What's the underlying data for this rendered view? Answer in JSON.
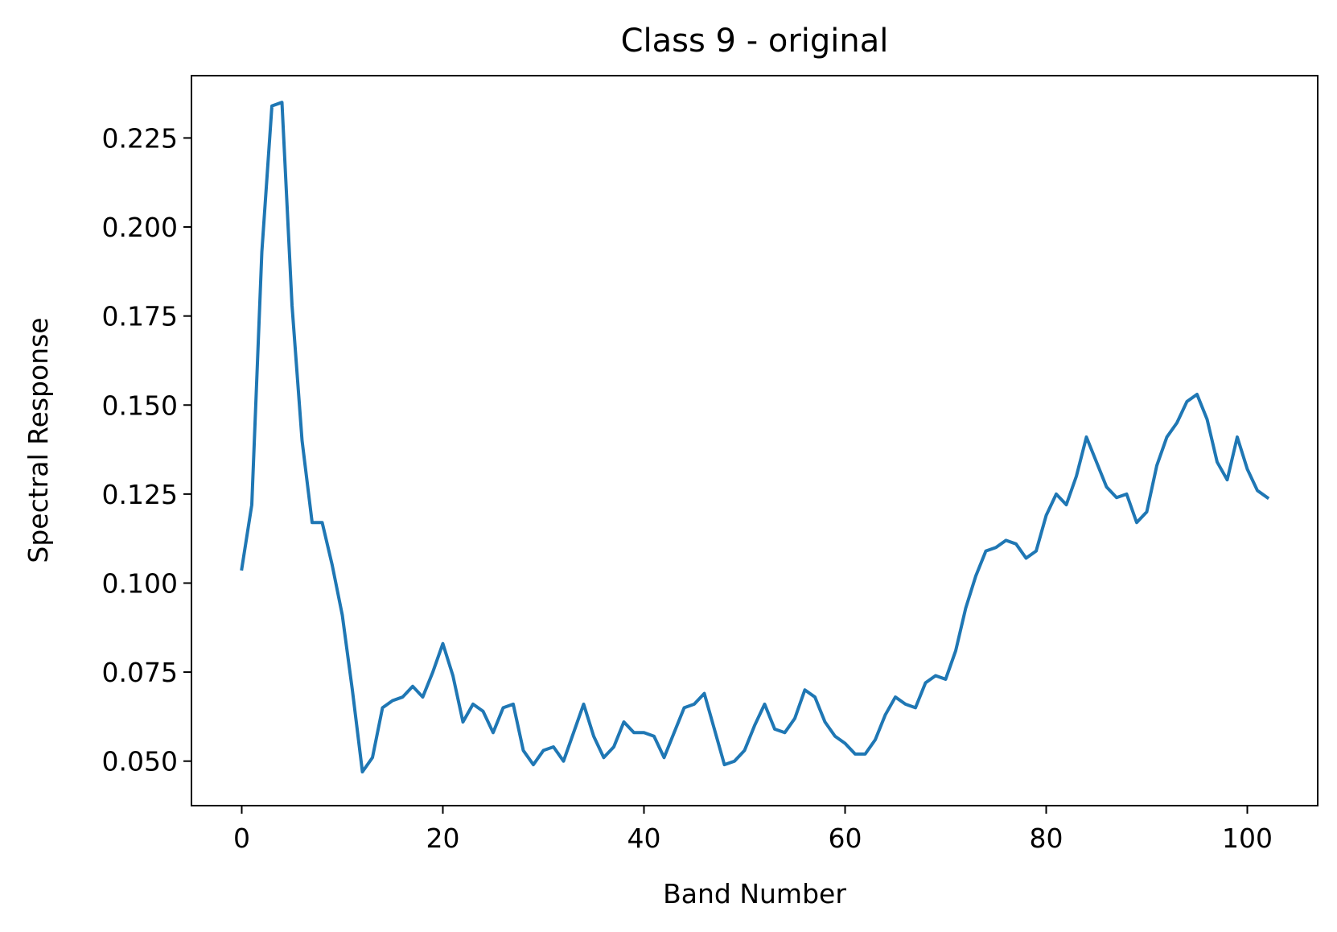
{
  "chart_data": {
    "type": "line",
    "title": "Class 9 - original",
    "xlabel": "Band Number",
    "ylabel": "Spectral Response",
    "xlim": [
      -5,
      107
    ],
    "ylim": [
      0.0375,
      0.2425
    ],
    "xticks": [
      0,
      20,
      40,
      60,
      80,
      100
    ],
    "xtick_labels": [
      "0",
      "20",
      "40",
      "60",
      "80",
      "100"
    ],
    "yticks": [
      0.05,
      0.075,
      0.1,
      0.125,
      0.15,
      0.175,
      0.2,
      0.225
    ],
    "ytick_labels": [
      "0.050",
      "0.075",
      "0.100",
      "0.125",
      "0.150",
      "0.175",
      "0.200",
      "0.225"
    ],
    "grid": false,
    "series": [
      {
        "color": "#1f77b4",
        "x": [
          0,
          1,
          2,
          3,
          4,
          5,
          6,
          7,
          8,
          9,
          10,
          11,
          12,
          13,
          14,
          15,
          16,
          17,
          18,
          19,
          20,
          21,
          22,
          23,
          24,
          25,
          26,
          27,
          28,
          29,
          30,
          31,
          32,
          33,
          34,
          35,
          36,
          37,
          38,
          39,
          40,
          41,
          42,
          43,
          44,
          45,
          46,
          47,
          48,
          49,
          50,
          51,
          52,
          53,
          54,
          55,
          56,
          57,
          58,
          59,
          60,
          61,
          62,
          63,
          64,
          65,
          66,
          67,
          68,
          69,
          70,
          71,
          72,
          73,
          74,
          75,
          76,
          77,
          78,
          79,
          80,
          81,
          82,
          83,
          84,
          85,
          86,
          87,
          88,
          89,
          90,
          91,
          92,
          93,
          94,
          95,
          96,
          97,
          98,
          99,
          100,
          101,
          102
        ],
        "y": [
          0.104,
          0.122,
          0.193,
          0.234,
          0.235,
          0.178,
          0.14,
          0.117,
          0.117,
          0.105,
          0.091,
          0.07,
          0.047,
          0.051,
          0.065,
          0.067,
          0.068,
          0.071,
          0.068,
          0.075,
          0.083,
          0.074,
          0.061,
          0.066,
          0.064,
          0.058,
          0.065,
          0.066,
          0.053,
          0.049,
          0.053,
          0.054,
          0.05,
          0.058,
          0.066,
          0.057,
          0.051,
          0.054,
          0.061,
          0.058,
          0.058,
          0.057,
          0.051,
          0.058,
          0.065,
          0.066,
          0.069,
          0.059,
          0.049,
          0.05,
          0.053,
          0.06,
          0.066,
          0.059,
          0.058,
          0.062,
          0.07,
          0.068,
          0.061,
          0.057,
          0.055,
          0.052,
          0.052,
          0.056,
          0.063,
          0.068,
          0.066,
          0.065,
          0.072,
          0.074,
          0.073,
          0.081,
          0.093,
          0.102,
          0.109,
          0.11,
          0.112,
          0.111,
          0.107,
          0.109,
          0.119,
          0.125,
          0.122,
          0.13,
          0.141,
          0.134,
          0.127,
          0.124,
          0.125,
          0.117,
          0.12,
          0.133,
          0.141,
          0.145,
          0.151,
          0.153,
          0.146,
          0.134,
          0.129,
          0.141,
          0.132,
          0.126,
          0.124
        ]
      }
    ]
  }
}
